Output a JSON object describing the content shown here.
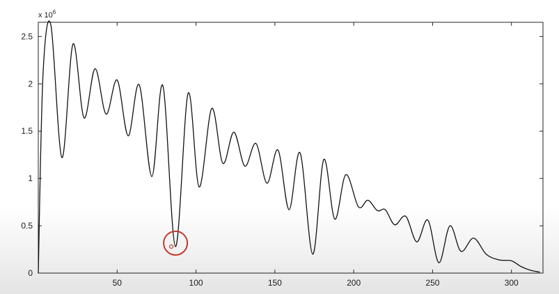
{
  "chart_data": {
    "type": "line",
    "title": "",
    "xlabel": "",
    "ylabel": "",
    "xlim": [
      0,
      320
    ],
    "ylim": [
      0,
      2.65
    ],
    "y_multiplier_label": "x 10",
    "y_multiplier_exponent": "6",
    "xticks": [
      50,
      100,
      150,
      200,
      250,
      300
    ],
    "yticks": [
      0,
      0.5,
      1,
      1.5,
      2,
      2.5
    ],
    "grid": false,
    "line_color": "#111111",
    "marker_color": "#c0392b",
    "series": [
      {
        "x": [
          0,
          3,
          8,
          15,
          22,
          29,
          36,
          43,
          50,
          57,
          64,
          72,
          79,
          87,
          95,
          102,
          110,
          117,
          124,
          131,
          138,
          145,
          152,
          159,
          166,
          174,
          181,
          188,
          195,
          203,
          209,
          215,
          220,
          226,
          233,
          240,
          247,
          254,
          261,
          268,
          276,
          284,
          292,
          300,
          306,
          312,
          318
        ],
        "y": [
          0,
          2.1,
          2.62,
          1.22,
          2.42,
          1.64,
          2.16,
          1.68,
          2.04,
          1.45,
          1.99,
          1.02,
          1.98,
          0.28,
          1.9,
          0.91,
          1.74,
          1.16,
          1.49,
          1.13,
          1.37,
          0.95,
          1.3,
          0.67,
          1.27,
          0.2,
          1.2,
          0.57,
          1.04,
          0.7,
          0.77,
          0.66,
          0.67,
          0.51,
          0.6,
          0.33,
          0.56,
          0.11,
          0.5,
          0.23,
          0.37,
          0.2,
          0.14,
          0.13,
          0.07,
          0.03,
          0.01
        ]
      }
    ],
    "highlight": {
      "x": 87,
      "y": 0.28
    }
  }
}
